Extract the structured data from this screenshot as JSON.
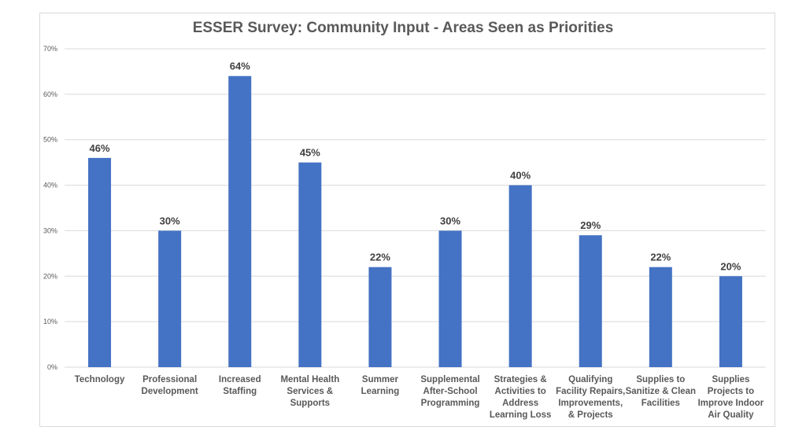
{
  "chart_data": {
    "type": "bar",
    "title": "ESSER Survey: Community Input - Areas Seen as Priorities",
    "xlabel": "",
    "ylabel": "",
    "ylim": [
      0,
      70
    ],
    "yticks": [
      "0%",
      "10%",
      "20%",
      "30%",
      "40%",
      "50%",
      "60%",
      "70%"
    ],
    "grid": true,
    "color": "#4472C4",
    "categories": [
      "Technology",
      "Professional\nDevelopment",
      "Increased\nStaffing",
      "Mental Health\nServices &\nSupports",
      "Summer\nLearning",
      "Supplemental\nAfter-School\nProgramming",
      "Strategies &\nActivities to\nAddress\nLearning Loss",
      "Qualifying\nFacility Repairs,\nImprovements,\n& Projects",
      "Supplies to\nSanitize & Clean\nFacilities",
      "Supplies\nProjects to\nImprove Indoor\nAir Quality"
    ],
    "values": [
      46,
      30,
      64,
      45,
      22,
      30,
      40,
      29,
      22,
      20
    ],
    "data_labels": [
      "46%",
      "30%",
      "64%",
      "45%",
      "22%",
      "30%",
      "40%",
      "29%",
      "22%",
      "20%"
    ]
  }
}
